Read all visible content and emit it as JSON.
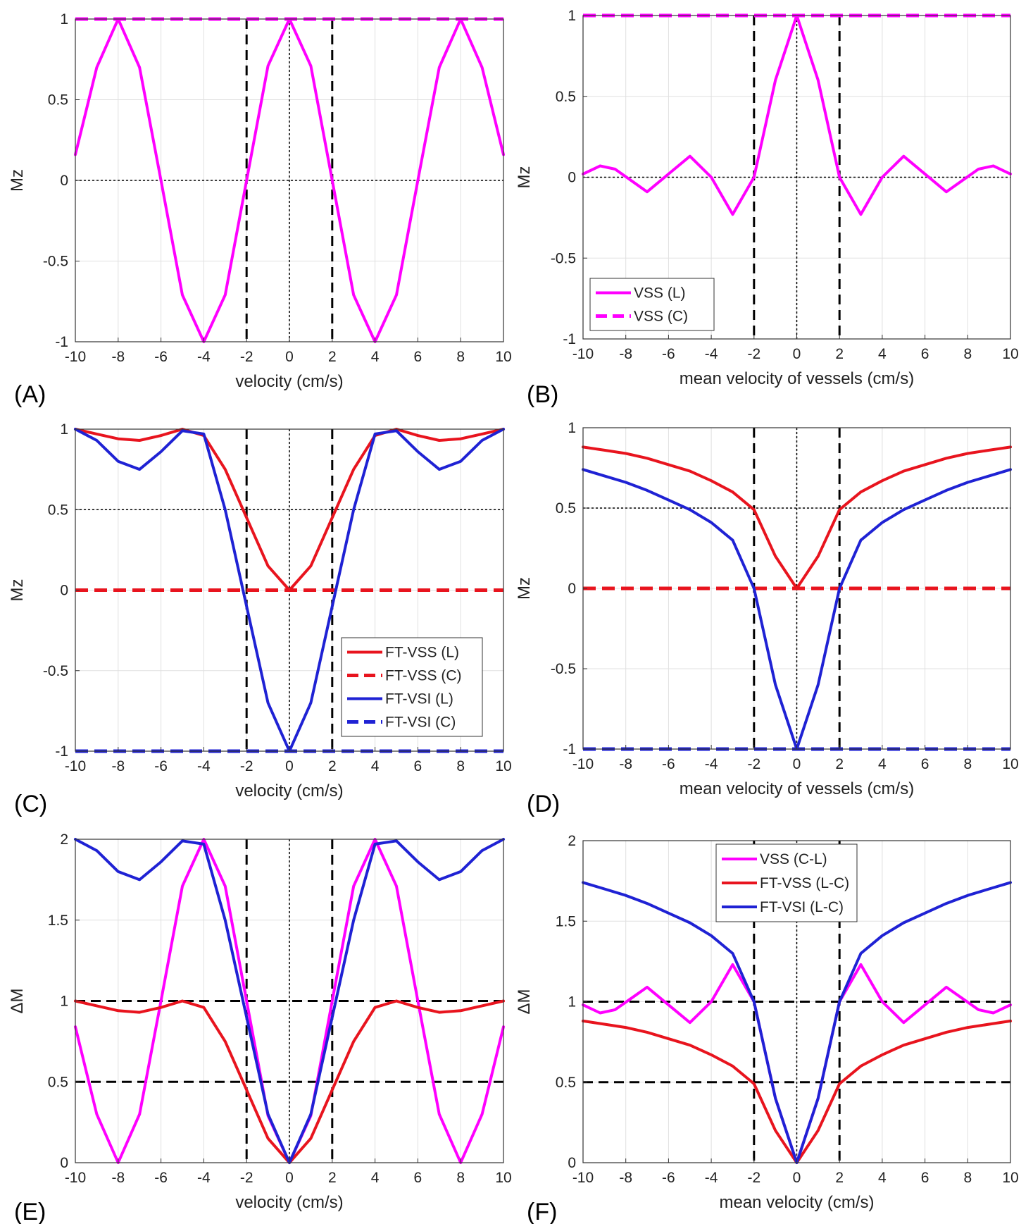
{
  "chart_data": [
    {
      "panel": "(A)",
      "type": "line",
      "xlabel": "velocity (cm/s)",
      "ylabel": "Mz",
      "xlim": [
        -10,
        10
      ],
      "ylim": [
        -1,
        1
      ],
      "xticks": [
        -10,
        -8,
        -6,
        -4,
        -2,
        0,
        2,
        4,
        6,
        8,
        10
      ],
      "yticks": [
        -1,
        -0.5,
        0,
        0.5,
        1
      ],
      "ytick_labels": [
        "-1",
        "-0.5",
        "0",
        "0.5",
        "1"
      ],
      "grid": true,
      "legend": null,
      "series": [
        {
          "color": "#ff00ff",
          "style": "solid",
          "x": [
            -10,
            -9,
            -8,
            -7,
            -6,
            -5,
            -4,
            -3,
            -2,
            -1,
            0,
            1,
            2,
            3,
            4,
            5,
            6,
            7,
            8,
            9,
            10
          ],
          "y": [
            0.16,
            0.7,
            1.0,
            0.7,
            0.0,
            -0.71,
            -1.0,
            -0.71,
            0.0,
            0.71,
            1.0,
            0.71,
            0.0,
            -0.71,
            -1.0,
            -0.71,
            0.0,
            0.7,
            1.0,
            0.7,
            0.16
          ]
        },
        {
          "color": "#ff00ff",
          "style": "dashed",
          "x": [
            -10,
            10
          ],
          "y": [
            1,
            1
          ]
        }
      ],
      "reference_lines": {
        "vertical_dashed": [
          -2,
          2
        ],
        "vertical_dotted": [
          0
        ],
        "horizontal_dotted": [
          0
        ],
        "horizontal_dashed": []
      }
    },
    {
      "panel": "(B)",
      "type": "line",
      "xlabel": "mean velocity of vessels (cm/s)",
      "ylabel": "Mz",
      "xlim": [
        -10,
        10
      ],
      "ylim": [
        -1,
        1
      ],
      "xticks": [
        -10,
        -8,
        -6,
        -4,
        -2,
        0,
        2,
        4,
        6,
        8,
        10
      ],
      "yticks": [
        -1,
        -0.5,
        0,
        0.5,
        1
      ],
      "ytick_labels": [
        "-1",
        "-0.5",
        "0",
        "0.5",
        "1"
      ],
      "grid": true,
      "legend": {
        "placement": "bottom-left",
        "entries": [
          "VSS (L)",
          "VSS (C)"
        ]
      },
      "series": [
        {
          "name": "VSS (L)",
          "color": "#ff00ff",
          "style": "solid",
          "x": [
            -10,
            -9.2,
            -8.5,
            -7,
            -6,
            -5,
            -4,
            -3,
            -2,
            -1,
            0,
            1,
            2,
            3,
            4,
            5,
            6,
            7,
            8.5,
            9.2,
            10
          ],
          "y": [
            0.02,
            0.07,
            0.05,
            -0.09,
            0.02,
            0.13,
            0.0,
            -0.23,
            0.0,
            0.6,
            1.0,
            0.6,
            0.0,
            -0.23,
            0.0,
            0.13,
            0.02,
            -0.09,
            0.05,
            0.07,
            0.02
          ]
        },
        {
          "name": "VSS (C)",
          "color": "#ff00ff",
          "style": "dashed",
          "x": [
            -10,
            10
          ],
          "y": [
            1,
            1
          ]
        }
      ],
      "reference_lines": {
        "vertical_dashed": [
          -2,
          2
        ],
        "vertical_dotted": [
          0
        ],
        "horizontal_dotted": [
          0
        ],
        "horizontal_dashed": []
      }
    },
    {
      "panel": "(C)",
      "type": "line",
      "xlabel": "velocity (cm/s)",
      "ylabel": "Mz",
      "xlim": [
        -10,
        10
      ],
      "ylim": [
        -1,
        1
      ],
      "xticks": [
        -10,
        -8,
        -6,
        -4,
        -2,
        0,
        2,
        4,
        6,
        8,
        10
      ],
      "yticks": [
        -1,
        -0.5,
        0,
        0.5,
        1
      ],
      "ytick_labels": [
        "-1",
        "-0.5",
        "0",
        "0.5",
        "1"
      ],
      "grid": true,
      "legend": {
        "placement": "bottom-right",
        "entries": [
          "FT-VSS (L)",
          "FT-VSS (C)",
          "FT-VSI (L)",
          "FT-VSI (C)"
        ]
      },
      "series": [
        {
          "name": "FT-VSS (L)",
          "color": "#e8141e",
          "style": "solid",
          "x": [
            -10,
            -9,
            -8,
            -7,
            -6,
            -5,
            -4,
            -3,
            -2,
            -1,
            0,
            1,
            2,
            3,
            4,
            5,
            6,
            7,
            8,
            9,
            10
          ],
          "y": [
            1.0,
            0.97,
            0.94,
            0.93,
            0.96,
            1.0,
            0.96,
            0.75,
            0.45,
            0.15,
            0.0,
            0.15,
            0.45,
            0.75,
            0.96,
            1.0,
            0.96,
            0.93,
            0.94,
            0.97,
            1.0
          ]
        },
        {
          "name": "FT-VSS (C)",
          "color": "#e8141e",
          "style": "dashed",
          "x": [
            -10,
            10
          ],
          "y": [
            0,
            0
          ]
        },
        {
          "name": "FT-VSI (L)",
          "color": "#1f22d4",
          "style": "solid",
          "x": [
            -10,
            -9,
            -8,
            -7,
            -6,
            -5,
            -4,
            -3,
            -2,
            -1,
            0,
            1,
            2,
            3,
            4,
            5,
            6,
            7,
            8,
            9,
            10
          ],
          "y": [
            1.0,
            0.93,
            0.8,
            0.75,
            0.86,
            0.99,
            0.97,
            0.5,
            -0.1,
            -0.7,
            -1.0,
            -0.7,
            -0.1,
            0.5,
            0.97,
            0.99,
            0.86,
            0.75,
            0.8,
            0.93,
            1.0
          ]
        },
        {
          "name": "FT-VSI (C)",
          "color": "#1f22d4",
          "style": "dashed",
          "x": [
            -10,
            10
          ],
          "y": [
            -1,
            -1
          ]
        }
      ],
      "reference_lines": {
        "vertical_dashed": [
          -2,
          2
        ],
        "vertical_dotted": [
          0
        ],
        "horizontal_dotted": [
          0.5
        ],
        "horizontal_dashed": []
      }
    },
    {
      "panel": "(D)",
      "type": "line",
      "xlabel": "mean velocity of vessels (cm/s)",
      "ylabel": "Mz",
      "xlim": [
        -10,
        10
      ],
      "ylim": [
        -1,
        1
      ],
      "xticks": [
        -10,
        -8,
        -6,
        -4,
        -2,
        0,
        2,
        4,
        6,
        8,
        10
      ],
      "yticks": [
        -1,
        -0.5,
        0,
        0.5,
        1
      ],
      "ytick_labels": [
        "-1",
        "-0.5",
        "0",
        "0.5",
        "1"
      ],
      "grid": true,
      "legend": null,
      "series": [
        {
          "color": "#e8141e",
          "style": "solid",
          "x": [
            -10,
            -9,
            -8,
            -7,
            -6,
            -5,
            -4,
            -3,
            -2,
            -1,
            0,
            1,
            2,
            3,
            4,
            5,
            6,
            7,
            8,
            9,
            10
          ],
          "y": [
            0.88,
            0.86,
            0.84,
            0.81,
            0.77,
            0.73,
            0.67,
            0.6,
            0.49,
            0.2,
            0.0,
            0.2,
            0.49,
            0.6,
            0.67,
            0.73,
            0.77,
            0.81,
            0.84,
            0.86,
            0.88
          ]
        },
        {
          "color": "#e8141e",
          "style": "dashed",
          "x": [
            -10,
            10
          ],
          "y": [
            0,
            0
          ]
        },
        {
          "color": "#1f22d4",
          "style": "solid",
          "x": [
            -10,
            -9,
            -8,
            -7,
            -6,
            -5,
            -4,
            -3,
            -2,
            -1,
            0,
            1,
            2,
            3,
            4,
            5,
            6,
            7,
            8,
            9,
            10
          ],
          "y": [
            0.74,
            0.7,
            0.66,
            0.61,
            0.55,
            0.49,
            0.41,
            0.3,
            0.0,
            -0.6,
            -1.0,
            -0.6,
            0.0,
            0.3,
            0.41,
            0.49,
            0.55,
            0.61,
            0.66,
            0.7,
            0.74
          ]
        },
        {
          "color": "#1f22d4",
          "style": "dashed",
          "x": [
            -10,
            10
          ],
          "y": [
            -1,
            -1
          ]
        }
      ],
      "reference_lines": {
        "vertical_dashed": [
          -2,
          2
        ],
        "vertical_dotted": [
          0
        ],
        "horizontal_dotted": [
          0.5
        ],
        "horizontal_dashed": []
      }
    },
    {
      "panel": "(E)",
      "type": "line",
      "xlabel": "velocity (cm/s)",
      "ylabel": "ΔM",
      "xlim": [
        -10,
        10
      ],
      "ylim": [
        0,
        2
      ],
      "xticks": [
        -10,
        -8,
        -6,
        -4,
        -2,
        0,
        2,
        4,
        6,
        8,
        10
      ],
      "yticks": [
        0,
        0.5,
        1,
        1.5,
        2
      ],
      "ytick_labels": [
        "0",
        "0.5",
        "1",
        "1.5",
        "2"
      ],
      "grid": true,
      "legend": null,
      "series": [
        {
          "color": "#ff00ff",
          "style": "solid",
          "x": [
            -10,
            -9,
            -8,
            -7,
            -6,
            -5,
            -4,
            -3,
            -2,
            -1,
            0,
            1,
            2,
            3,
            4,
            5,
            6,
            7,
            8,
            9,
            10
          ],
          "y": [
            0.84,
            0.3,
            0.0,
            0.3,
            1.0,
            1.71,
            2.0,
            1.71,
            1.0,
            0.29,
            0.0,
            0.29,
            1.0,
            1.71,
            2.0,
            1.71,
            1.0,
            0.3,
            0.0,
            0.3,
            0.84
          ]
        },
        {
          "color": "#e8141e",
          "style": "solid",
          "x": [
            -10,
            -9,
            -8,
            -7,
            -6,
            -5,
            -4,
            -3,
            -2,
            -1,
            0,
            1,
            2,
            3,
            4,
            5,
            6,
            7,
            8,
            9,
            10
          ],
          "y": [
            1.0,
            0.97,
            0.94,
            0.93,
            0.96,
            1.0,
            0.96,
            0.75,
            0.45,
            0.15,
            0.0,
            0.15,
            0.45,
            0.75,
            0.96,
            1.0,
            0.96,
            0.93,
            0.94,
            0.97,
            1.0
          ]
        },
        {
          "color": "#1f22d4",
          "style": "solid",
          "x": [
            -10,
            -9,
            -8,
            -7,
            -6,
            -5,
            -4,
            -3,
            -2,
            -1,
            0,
            1,
            2,
            3,
            4,
            5,
            6,
            7,
            8,
            9,
            10
          ],
          "y": [
            2.0,
            1.93,
            1.8,
            1.75,
            1.86,
            1.99,
            1.97,
            1.5,
            0.9,
            0.3,
            0.0,
            0.3,
            0.9,
            1.5,
            1.97,
            1.99,
            1.86,
            1.75,
            1.8,
            1.93,
            2.0
          ]
        }
      ],
      "reference_lines": {
        "vertical_dashed": [
          -2,
          2
        ],
        "vertical_dotted": [
          0
        ],
        "horizontal_dotted": [],
        "horizontal_dashed": [
          1,
          0.5
        ]
      }
    },
    {
      "panel": "(F)",
      "type": "line",
      "xlabel": "mean velocity (cm/s)",
      "ylabel": "ΔM",
      "xlim": [
        -10,
        10
      ],
      "ylim": [
        0,
        2
      ],
      "xticks": [
        -10,
        -8,
        -6,
        -4,
        -2,
        0,
        2,
        4,
        6,
        8,
        10
      ],
      "yticks": [
        0,
        0.5,
        1,
        1.5,
        2
      ],
      "ytick_labels": [
        "0",
        "0.5",
        "1",
        "1.5",
        "2"
      ],
      "grid": true,
      "legend": {
        "placement": "top-center",
        "entries": [
          "VSS (C-L)",
          "FT-VSS (L-C)",
          "FT-VSI (L-C)"
        ]
      },
      "series": [
        {
          "name": "VSS (C-L)",
          "color": "#ff00ff",
          "style": "solid",
          "x": [
            -10,
            -9.2,
            -8.5,
            -7,
            -6,
            -5,
            -4,
            -3,
            -2,
            -1,
            0,
            1,
            2,
            3,
            4,
            5,
            6,
            7,
            8.5,
            9.2,
            10
          ],
          "y": [
            0.98,
            0.93,
            0.95,
            1.09,
            0.98,
            0.87,
            1.0,
            1.23,
            1.0,
            0.4,
            0.0,
            0.4,
            1.0,
            1.23,
            1.0,
            0.87,
            0.98,
            1.09,
            0.95,
            0.93,
            0.98
          ]
        },
        {
          "name": "FT-VSS (L-C)",
          "color": "#e8141e",
          "style": "solid",
          "x": [
            -10,
            -9,
            -8,
            -7,
            -6,
            -5,
            -4,
            -3,
            -2,
            -1,
            0,
            1,
            2,
            3,
            4,
            5,
            6,
            7,
            8,
            9,
            10
          ],
          "y": [
            0.88,
            0.86,
            0.84,
            0.81,
            0.77,
            0.73,
            0.67,
            0.6,
            0.49,
            0.2,
            0.0,
            0.2,
            0.49,
            0.6,
            0.67,
            0.73,
            0.77,
            0.81,
            0.84,
            0.86,
            0.88
          ]
        },
        {
          "name": "FT-VSI (L-C)",
          "color": "#1f22d4",
          "style": "solid",
          "x": [
            -10,
            -9,
            -8,
            -7,
            -6,
            -5,
            -4,
            -3,
            -2,
            -1,
            0,
            1,
            2,
            3,
            4,
            5,
            6,
            7,
            8,
            9,
            10
          ],
          "y": [
            1.74,
            1.7,
            1.66,
            1.61,
            1.55,
            1.49,
            1.41,
            1.3,
            1.0,
            0.4,
            0.0,
            0.4,
            1.0,
            1.3,
            1.41,
            1.49,
            1.55,
            1.61,
            1.66,
            1.7,
            1.74
          ]
        }
      ],
      "reference_lines": {
        "vertical_dashed": [
          -2,
          2
        ],
        "vertical_dotted": [
          0
        ],
        "horizontal_dotted": [],
        "horizontal_dashed": [
          1,
          0.5
        ]
      }
    }
  ]
}
